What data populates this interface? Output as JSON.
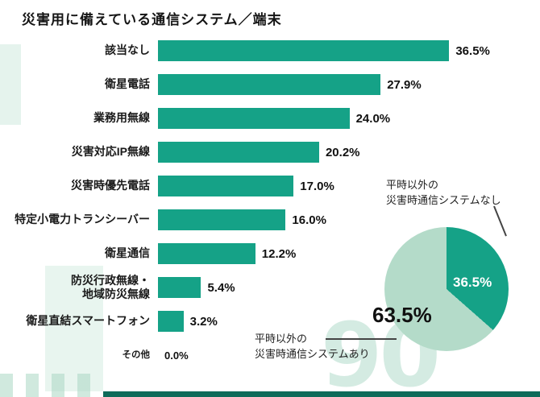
{
  "title": "災害用に備えている通信システム／端末",
  "colors": {
    "bar": "#15A287",
    "pie_dark": "#15A287",
    "pie_light": "#B4DBC9",
    "bottom_strip": "#0E6B59"
  },
  "chart_data": [
    {
      "type": "bar",
      "orientation": "horizontal",
      "title": "災害用に備えている通信システム／端末",
      "categories": [
        "該当なし",
        "衛星電話",
        "業務用無線",
        "災害対応IP無線",
        "災害時優先電話",
        "特定小電力トランシーバー",
        "衛星通信",
        "防災行政無線・\n地域防災無線",
        "衛星直結スマートフォン",
        "その他"
      ],
      "values": [
        36.5,
        27.9,
        24.0,
        20.2,
        17.0,
        16.0,
        12.2,
        5.4,
        3.2,
        0.0
      ],
      "value_labels": [
        "36.5%",
        "27.9%",
        "24.0%",
        "20.2%",
        "17.0%",
        "16.0%",
        "12.2%",
        "5.4%",
        "3.2%",
        "0.0%"
      ],
      "bar_color": "#15A287",
      "xlim": [
        0,
        40
      ],
      "grid": false,
      "value_suffix": "%"
    },
    {
      "type": "pie",
      "slices": [
        {
          "label": "平時以外の災害時通信システムなし",
          "value": 36.5,
          "display": "36.5%",
          "color": "#15A287"
        },
        {
          "label": "平時以外の災害時通信システムあり",
          "value": 63.5,
          "display": "63.5%",
          "color": "#B4DBC9"
        }
      ],
      "start_angle_deg": 0,
      "direction": "clockwise"
    }
  ],
  "annotations": {
    "no_system": "平時以外の\n災害時通信システムなし",
    "has_system": "平時以外の\n災害時通信システムあり"
  },
  "decor": {
    "watermark": "90"
  }
}
